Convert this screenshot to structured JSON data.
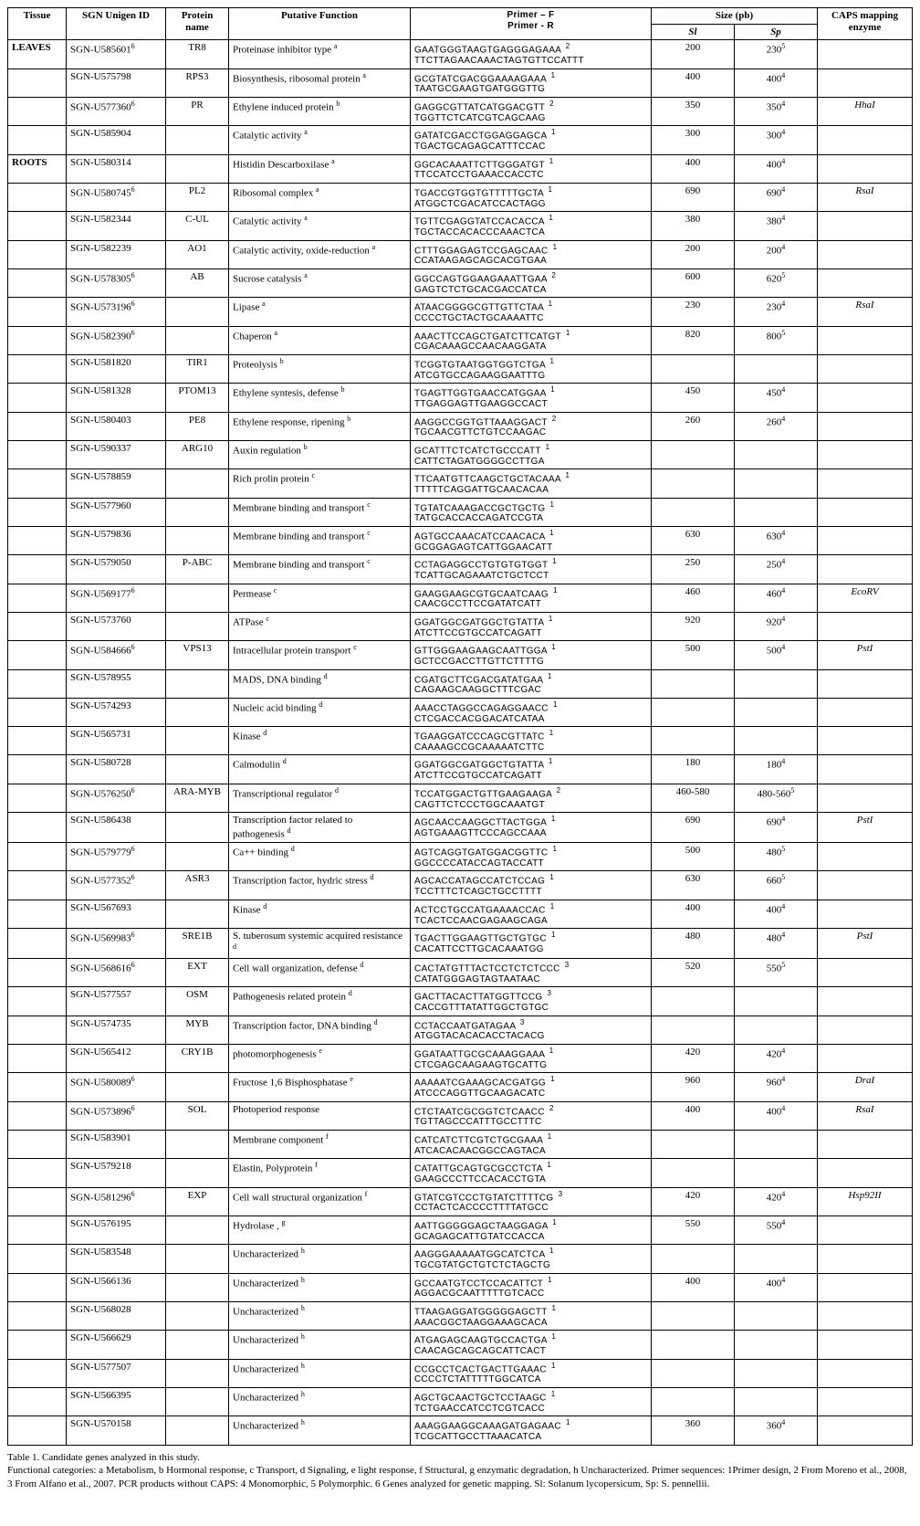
{
  "headers": {
    "tissue": "Tissue",
    "sgn": "SGN\nUnigen ID",
    "protein": "Protein\nname",
    "func": "Putative Function",
    "primerF": "Primer – F",
    "primerR": "Primer - R",
    "size": "Size (pb)",
    "sl": "Sl",
    "sp": "Sp",
    "enz": "CAPS mapping enzyme"
  },
  "caption": {
    "title": "Table 1. Candidate genes analyzed in this study.",
    "body": "Functional categories: a Metabolism, b Hormonal response, c Transport, d Signaling, e light response, f Structural, g enzymatic degradation, h Uncharacterized. Primer sequences: 1Primer design, 2 From Moreno et al., 2008, 3 From Alfano et al., 2007. PCR products without CAPS: 4 Monomorphic, 5 Polymorphic. 6 Genes analyzed for genetic mapping. Sl: Solanum lycopersicum, Sp: S. pennellii."
  },
  "rows": [
    {
      "t": "LEAVES",
      "sgn": "SGN-U585601",
      "sgnS": "6",
      "prot": "TR8",
      "func": "Proteinase inhibitor type",
      "fS": "a",
      "pF": "GAATGGGTAAGTGAGGGAGAAA",
      "pR": "TTCTTAGAACAAACTAGTGTTCCATTT",
      "pS": "2",
      "sl": "200",
      "slS": "",
      "sp": "230",
      "spS": "5",
      "enz": ""
    },
    {
      "t": "",
      "sgn": "SGN-U575798",
      "sgnS": "",
      "prot": "RPS3",
      "func": "Biosynthesis, ribosomal protein",
      "fS": "a",
      "pF": "GCGTATCGACGGAAAAGAAA",
      "pR": "TAATGCGAAGTGATGGGTTG",
      "pS": "1",
      "sl": "400",
      "slS": "",
      "sp": "400",
      "spS": "4",
      "enz": ""
    },
    {
      "t": "",
      "sgn": "SGN-U577360",
      "sgnS": "6",
      "prot": "PR",
      "func": "Ethylene induced protein",
      "fS": "b",
      "pF": "GAGGCGTTATCATGGACGTT",
      "pR": "TGGTTCTCATCGTCAGCAAG",
      "pS": "2",
      "sl": "350",
      "slS": "",
      "sp": "350",
      "spS": "4",
      "enz": "HhaI"
    },
    {
      "t": "",
      "sgn": "SGN-U585904",
      "sgnS": "",
      "prot": "",
      "func": "Catalytic activity",
      "fS": "a",
      "pF": "GATATCGACCTGGAGGAGCA",
      "pR": "TGACTGCAGAGCATTTCCAC",
      "pS": "1",
      "sl": "300",
      "slS": "",
      "sp": "300",
      "spS": "4",
      "enz": ""
    },
    {
      "t": "ROOTS",
      "sgn": "SGN-U580314",
      "sgnS": "",
      "prot": "",
      "func": "Histidin Descarboxilase",
      "fS": "a",
      "pF": "GGCACAAATTCTTGGGATGT",
      "pR": "TTCCATCCTGAAACCACCTC",
      "pS": "1",
      "sl": "400",
      "slS": "",
      "sp": "400",
      "spS": "4",
      "enz": ""
    },
    {
      "t": "",
      "sgn": "SGN-U580745",
      "sgnS": "6",
      "prot": "PL2",
      "func": "Ribosomal complex",
      "fS": "a",
      "pF": "TGACCGTGGTGTTTTTGCTA",
      "pR": "ATGGCTCGACATCCACTAGG",
      "pS": "1",
      "sl": "690",
      "slS": "",
      "sp": "690",
      "spS": "4",
      "enz": "RsaI"
    },
    {
      "t": "",
      "sgn": "SGN-U582344",
      "sgnS": "",
      "prot": "C-UL",
      "func": "Catalytic activity",
      "fS": "a",
      "pF": "TGTTCGAGGTATCCACACCA",
      "pR": "TGCTACCACACCCAAACTCA",
      "pS": "1",
      "sl": "380",
      "slS": "",
      "sp": "380",
      "spS": "4",
      "enz": ""
    },
    {
      "t": "",
      "sgn": "SGN-U582239",
      "sgnS": "",
      "prot": "AO1",
      "func": "Catalytic activity, oxide-reduction",
      "fS": "a",
      "pF": "CTTTGGAGAGTCCGAGCAAC",
      "pR": "CCATAAGAGCAGCACGTGAA",
      "pS": "1",
      "sl": "200",
      "slS": "",
      "sp": "200",
      "spS": "4",
      "enz": ""
    },
    {
      "t": "",
      "sgn": "SGN-U578305",
      "sgnS": "6",
      "prot": "AB",
      "func": "Sucrose catalysis",
      "fS": "a",
      "pF": "GGCCAGTGGAAGAAATTGAA",
      "pR": "GAGTCTCTGCACGACCATCA",
      "pS": "2",
      "sl": "600",
      "slS": "",
      "sp": "620",
      "spS": "5",
      "enz": ""
    },
    {
      "t": "",
      "sgn": "SGN-U573196",
      "sgnS": "6",
      "prot": "",
      "func": "Lipase",
      "fS": "a",
      "pF": "ATAACGGGGCGTTGTTCTAA",
      "pR": "CCCCTGCTACTGCAAAATTC",
      "pS": "1",
      "sl": "230",
      "slS": "",
      "sp": "230",
      "spS": "4",
      "enz": "RsaI"
    },
    {
      "t": "",
      "sgn": "SGN-U582390",
      "sgnS": "6",
      "prot": "",
      "func": "Chaperon",
      "fS": "a",
      "pF": "AAACTTCCAGCTGATCTTCATGT",
      "pR": "CGACAAAGCCAACAAGGATA",
      "pS": "1",
      "sl": "820",
      "slS": "",
      "sp": "800",
      "spS": "5",
      "enz": ""
    },
    {
      "t": "",
      "sgn": "SGN-U581820",
      "sgnS": "",
      "prot": "TIR1",
      "func": "Proteolysis",
      "fS": "b",
      "pF": "TCGGTGTAATGGTGGTCTGA",
      "pR": "ATCGTGCCAGAAGGAATTTG",
      "pS": "1",
      "sl": "",
      "slS": "",
      "sp": "",
      "spS": "",
      "enz": ""
    },
    {
      "t": "",
      "sgn": "SGN-U581328",
      "sgnS": "",
      "prot": "PTOM13",
      "func": "Ethylene syntesis, defense",
      "fS": "b",
      "pF": "TGAGTTGGTGAACCATGGAA",
      "pR": "TTGAGGAGTTGAAGGCCACT",
      "pS": "1",
      "sl": "450",
      "slS": "",
      "sp": "450",
      "spS": "4",
      "enz": ""
    },
    {
      "t": "",
      "sgn": "SGN-U580403",
      "sgnS": "",
      "prot": "PE8",
      "func": "Ethylene response, ripening",
      "fS": "b",
      "pF": "AAGGCCGGTGTTAAAGGACT",
      "pR": "TGCAACGTTCTGTCCAAGAC",
      "pS": "2",
      "sl": "260",
      "slS": "",
      "sp": "260",
      "spS": "4",
      "enz": ""
    },
    {
      "t": "",
      "sgn": "SGN-U590337",
      "sgnS": "",
      "prot": "ARG10",
      "func": "Auxin regulation",
      "fS": "b",
      "pF": "GCATTTCTCATCTGCCCATT",
      "pR": "CATTCTAGATGGGGCCTTGA",
      "pS": "1",
      "sl": "",
      "slS": "",
      "sp": "",
      "spS": "",
      "enz": ""
    },
    {
      "t": "",
      "sgn": "SGN-U578859",
      "sgnS": "",
      "prot": "",
      "func": "Rich prolin protein",
      "fS": "c",
      "pF": "TTCAATGTTCAAGCTGCTACAAA",
      "pR": "TTTTTCAGGATTGCAACACAA",
      "pS": "1",
      "sl": "",
      "slS": "",
      "sp": "",
      "spS": "",
      "enz": ""
    },
    {
      "t": "",
      "sgn": "SGN-U577960",
      "sgnS": "",
      "prot": "",
      "func": "Membrane binding and transport",
      "fS": "c",
      "pF": "TGTATCAAAGACCGCTGCTG",
      "pR": "TATGCACCACCAGATCCGTA",
      "pS": "1",
      "sl": "",
      "slS": "",
      "sp": "",
      "spS": "",
      "enz": ""
    },
    {
      "t": "",
      "sgn": "SGN-U579836",
      "sgnS": "",
      "prot": "",
      "func": "Membrane binding and transport",
      "fS": "c",
      "pF": "AGTGCCAAACATCCAACACA",
      "pR": "GCGGAGAGTCATTGGAACATT",
      "pS": "1",
      "sl": "630",
      "slS": "",
      "sp": "630",
      "spS": "4",
      "enz": ""
    },
    {
      "t": "",
      "sgn": "SGN-U579050",
      "sgnS": "",
      "prot": "P-ABC",
      "func": "Membrane binding and transport",
      "fS": "c",
      "pF": "CCTAGAGGCCTGTGTGTGGT",
      "pR": "TCATTGCAGAAATCTGCTCCT",
      "pS": "1",
      "sl": "250",
      "slS": "",
      "sp": "250",
      "spS": "4",
      "enz": ""
    },
    {
      "t": "",
      "sgn": "SGN-U569177",
      "sgnS": "6",
      "prot": "",
      "func": "Permease",
      "fS": "c",
      "pF": "GAAGGAAGCGTGCAATCAAG",
      "pR": "CAACGCCTTCCGATATCATT",
      "pS": "1",
      "sl": "460",
      "slS": "",
      "sp": "460",
      "spS": "4",
      "enz": "EcoRV"
    },
    {
      "t": "",
      "sgn": "SGN-U573760",
      "sgnS": "",
      "prot": "",
      "func": "ATPase",
      "fS": "c",
      "pF": "GGATGGCGATGGCTGTATTA",
      "pR": "ATCTTCCGTGCCATCAGATT",
      "pS": "1",
      "sl": "920",
      "slS": "",
      "sp": "920",
      "spS": "4",
      "enz": ""
    },
    {
      "t": "BREAK"
    },
    {
      "t": "",
      "sgn": "SGN-U584666",
      "sgnS": "6",
      "prot": "VPS13",
      "func": "Intracellular protein transport",
      "fS": "c",
      "pF": "GTTGGGAAGAAGCAATTGGA",
      "pR": "GCTCCGACCTTGTTCTTTTG",
      "pS": "1",
      "sl": "500",
      "slS": "",
      "sp": "500",
      "spS": "4",
      "enz": "PstI"
    },
    {
      "t": "",
      "sgn": "SGN-U578955",
      "sgnS": "",
      "prot": "",
      "func": "MADS, DNA binding",
      "fS": "d",
      "pF": "CGATGCTTCGACGATATGAA",
      "pR": "CAGAAGCAAGGCTTTCGAC",
      "pS": "1",
      "sl": "",
      "slS": "",
      "sp": "",
      "spS": "",
      "enz": ""
    },
    {
      "t": "",
      "sgn": "SGN-U574293",
      "sgnS": "",
      "prot": "",
      "func": "Nucleic acid binding",
      "fS": "d",
      "pF": "AAACCTAGGCCAGAGGAACC",
      "pR": "CTCGACCACGGACATCATAA",
      "pS": "1",
      "sl": "",
      "slS": "",
      "sp": "",
      "spS": "",
      "enz": ""
    },
    {
      "t": "",
      "sgn": "SGN-U565731",
      "sgnS": "",
      "prot": "",
      "func": "Kinase",
      "fS": "d",
      "pF": "TGAAGGATCCCAGCGTTATC",
      "pR": "CAAAAGCCGCAAAAATCTTC",
      "pS": "1",
      "sl": "",
      "slS": "",
      "sp": "",
      "spS": "",
      "enz": ""
    },
    {
      "t": "",
      "sgn": "SGN-U580728",
      "sgnS": "",
      "prot": "",
      "func": "Calmodulin",
      "fS": "d",
      "pF": "GGATGGCGATGGCTGTATTA",
      "pR": "ATCTTCCGTGCCATCAGATT",
      "pS": "1",
      "sl": "180",
      "slS": "",
      "sp": "180",
      "spS": "4",
      "enz": ""
    },
    {
      "t": "",
      "sgn": "SGN-U576250",
      "sgnS": "6",
      "prot": "ARA-MYB",
      "func": "Transcriptional regulator",
      "fS": "d",
      "pF": "TCCATGGACTGTTGAAGAAGA",
      "pR": "CAGTTCTCCCTGGCAAATGT",
      "pS": "2",
      "sl": "460-580",
      "slS": "",
      "sp": "480-560",
      "spS": "5",
      "enz": ""
    },
    {
      "t": "",
      "sgn": "SGN-U586438",
      "sgnS": "",
      "prot": "",
      "func": "Transcription factor related to pathogenesis",
      "fS": "d",
      "pF": "AGCAACCAAGGCTTACTGGA",
      "pR": "AGTGAAAGTTCCCAGCCAAA",
      "pS": "1",
      "sl": "690",
      "slS": "",
      "sp": "690",
      "spS": "4",
      "enz": "PstI"
    },
    {
      "t": "",
      "sgn": "SGN-U579779",
      "sgnS": "6",
      "prot": "",
      "func": "Ca++ binding",
      "fS": "d",
      "pF": "AGTCAGGTGATGGACGGTTC",
      "pR": "GGCCCCATACCAGTACCATT",
      "pS": "1",
      "sl": "500",
      "slS": "",
      "sp": "480",
      "spS": "5",
      "enz": ""
    },
    {
      "t": "",
      "sgn": "SGN-U577352",
      "sgnS": "6",
      "prot": "ASR3",
      "func": "Transcription factor, hydric stress",
      "fS": "d",
      "pF": "AGCACCATAGCCATCTCCAG",
      "pR": "TCCTTTCTCAGCTGCCTTTT",
      "pS": "1",
      "sl": "630",
      "slS": "",
      "sp": "660",
      "spS": "5",
      "enz": ""
    },
    {
      "t": "",
      "sgn": "SGN-U567693",
      "sgnS": "",
      "prot": "",
      "func": "Kinase",
      "fS": "d",
      "pF": "ACTCCTGCCATGAAAACCAC",
      "pR": "TCACTCCAACGAGAAGCAGA",
      "pS": "1",
      "sl": "400",
      "slS": "",
      "sp": "400",
      "spS": "4",
      "enz": ""
    },
    {
      "t": "",
      "sgn": "SGN-U569983",
      "sgnS": "6",
      "prot": "SRE1B",
      "func": "S. tuberosum systemic acquired resistance",
      "fS": "d",
      "pF": "TGACTTGGAAGTTGCTGTGC",
      "pR": "CACATTCCTTGCACAAATGG",
      "pS": "1",
      "sl": "480",
      "slS": "",
      "sp": "480",
      "spS": "4",
      "enz": "PstI"
    },
    {
      "t": "",
      "sgn": "SGN-U568616",
      "sgnS": "6",
      "prot": "EXT",
      "func": "Cell wall organization, defense",
      "fS": "d",
      "pF": "CACTATGTTTACTCCTCTCTCCC",
      "pR": "CATATGGGAGTAGTAATAAC",
      "pS": "3",
      "sl": "520",
      "slS": "",
      "sp": "550",
      "spS": "5",
      "enz": ""
    },
    {
      "t": "",
      "sgn": "SGN-U577557",
      "sgnS": "",
      "prot": "OSM",
      "func": "Pathogenesis related protein",
      "fS": "d",
      "pF": "GACTTACACTTATGGTTCCG",
      "pR": "CACCGTTTATATTGGCTGTGC",
      "pS": "3",
      "sl": "",
      "slS": "",
      "sp": "",
      "spS": "",
      "enz": ""
    },
    {
      "t": "",
      "sgn": "SGN-U574735",
      "sgnS": "",
      "prot": "MYB",
      "func": "Transcription factor, DNA binding",
      "fS": "d",
      "pF": "CCTACCAATGATAGAA",
      "pR": "ATGGTACACACACCTACACG",
      "pS": "3",
      "sl": "",
      "slS": "",
      "sp": "",
      "spS": "",
      "enz": ""
    },
    {
      "t": "",
      "sgn": "SGN-U565412",
      "sgnS": "",
      "prot": "CRY1B",
      "func": "photomorphogenesis",
      "fS": "e",
      "pF": "GGATAATTGCGCAAAGGAAA",
      "pR": "CTCGAGCAAGAAGTGCATTG",
      "pS": "1",
      "sl": "420",
      "slS": "",
      "sp": "420",
      "spS": "4",
      "enz": ""
    },
    {
      "t": "",
      "sgn": "SGN-U580089",
      "sgnS": "6",
      "prot": "",
      "func": "Fructose 1,6 Bisphosphatase",
      "fS": "e",
      "pF": "AAAAATCGAAAGCACGATGG",
      "pR": "ATCCCAGGTTGCAAGACATC",
      "pS": "1",
      "sl": "960",
      "slS": "",
      "sp": "960",
      "spS": "4",
      "enz": "DraI"
    },
    {
      "t": "",
      "sgn": "SGN-U573896",
      "sgnS": "6",
      "prot": "SOL",
      "func": "Photoperiod response",
      "fS": "",
      "pF": "CTCTAATCGCGGTCTCAACC",
      "pR": "TGTTAGCCCATTTGCCTTTC",
      "pS": "2",
      "sl": "400",
      "slS": "",
      "sp": "400",
      "spS": "4",
      "enz": "RsaI"
    },
    {
      "t": "",
      "sgn": "SGN-U583901",
      "sgnS": "",
      "prot": "",
      "func": "Membrane component",
      "fS": "f",
      "pF": "CATCATCTTCGTCTGCGAAA",
      "pR": "ATCACACAACGGCCAGTACA",
      "pS": "1",
      "sl": "",
      "slS": "",
      "sp": "",
      "spS": "",
      "enz": ""
    },
    {
      "t": "",
      "sgn": "SGN-U579218",
      "sgnS": "",
      "prot": "",
      "func": "Elastin, Polyprotein",
      "fS": "f",
      "pF": "CATATTGCAGTGCGCCTCTA",
      "pR": "GAAGCCCTTCCACACCTGTA",
      "pS": "1",
      "sl": "",
      "slS": "",
      "sp": "",
      "spS": "",
      "enz": ""
    },
    {
      "t": "",
      "sgn": "SGN-U581296",
      "sgnS": "6",
      "prot": "EXP",
      "func": "Cell wall structural organization",
      "fS": "f",
      "pF": "GTATCGTCCCTGTATCTTTTCG",
      "pR": "CCTACTCACCCCTTTTATGCC",
      "pS": "3",
      "sl": "420",
      "slS": "",
      "sp": "420",
      "spS": "4",
      "enz": "Hsp92II"
    },
    {
      "t": "",
      "sgn": "SGN-U576195",
      "sgnS": "",
      "prot": "",
      "func": "Hydrolase ,",
      "fS": "g",
      "pF": "AATTGGGGGAGCTAAGGAGA",
      "pR": "GCAGAGCATTGTATCCACCA",
      "pS": "1",
      "sl": "550",
      "slS": "",
      "sp": "550",
      "spS": "4",
      "enz": ""
    },
    {
      "t": "",
      "sgn": "SGN-U583548",
      "sgnS": "",
      "prot": "",
      "func": "Uncharacterized",
      "fS": "h",
      "pF": "AAGGGAAAAATGGCATCTCA",
      "pR": "TGCGTATGCTGTCTCTAGCTG",
      "pS": "1",
      "sl": "",
      "slS": "",
      "sp": "",
      "spS": "",
      "enz": ""
    },
    {
      "t": "",
      "sgn": "SGN-U566136",
      "sgnS": "",
      "prot": "",
      "func": "Uncharacterized",
      "fS": "h",
      "pF": "GCCAATGTCCTCCACATTCT",
      "pR": "AGGACGCAATTTTTGTCACC",
      "pS": "1",
      "sl": "400",
      "slS": "",
      "sp": "400",
      "spS": "4",
      "enz": ""
    },
    {
      "t": "",
      "sgn": "SGN-U568028",
      "sgnS": "",
      "prot": "",
      "func": "Uncharacterized",
      "fS": "h",
      "pF": "TTAAGAGGATGGGGGAGCTT",
      "pR": "AAACGGCTAAGGAAAGCACA",
      "pS": "1",
      "sl": "",
      "slS": "",
      "sp": "",
      "spS": "",
      "enz": ""
    },
    {
      "t": "BREAK"
    },
    {
      "t": "",
      "sgn": "SGN-U566629",
      "sgnS": "",
      "prot": "",
      "func": "Uncharacterized",
      "fS": "h",
      "pF": "ATGAGAGCAAGTGCCACTGA",
      "pR": "CAACAGCAGCAGCATTCACT",
      "pS": "1",
      "sl": "",
      "slS": "",
      "sp": "",
      "spS": "",
      "enz": ""
    },
    {
      "t": "",
      "sgn": "SGN-U577507",
      "sgnS": "",
      "prot": "",
      "func": "Uncharacterized",
      "fS": "h",
      "pF": "CCGCCTCACTGACTTGAAAC",
      "pR": "CCCCTCTATTTTTGGCATCA",
      "pS": "1",
      "sl": "",
      "slS": "",
      "sp": "",
      "spS": "",
      "enz": ""
    },
    {
      "t": "",
      "sgn": "SGN-U566395",
      "sgnS": "",
      "prot": "",
      "func": "Uncharacterized",
      "fS": "h",
      "pF": "AGCTGCAACTGCTCCTAAGC",
      "pR": "TCTGAACCATCCTCGTCACC",
      "pS": "1",
      "sl": "",
      "slS": "",
      "sp": "",
      "spS": "",
      "enz": ""
    },
    {
      "t": "",
      "sgn": "SGN-U570158",
      "sgnS": "",
      "prot": "",
      "func": "Uncharacterized",
      "fS": "h",
      "pF": "AAAGGAAGGCAAAGATGAGAAC",
      "pR": "TCGCATTGCCTTAAACATCA",
      "pS": "1",
      "sl": "360",
      "slS": "",
      "sp": "360",
      "spS": "4",
      "enz": ""
    }
  ]
}
